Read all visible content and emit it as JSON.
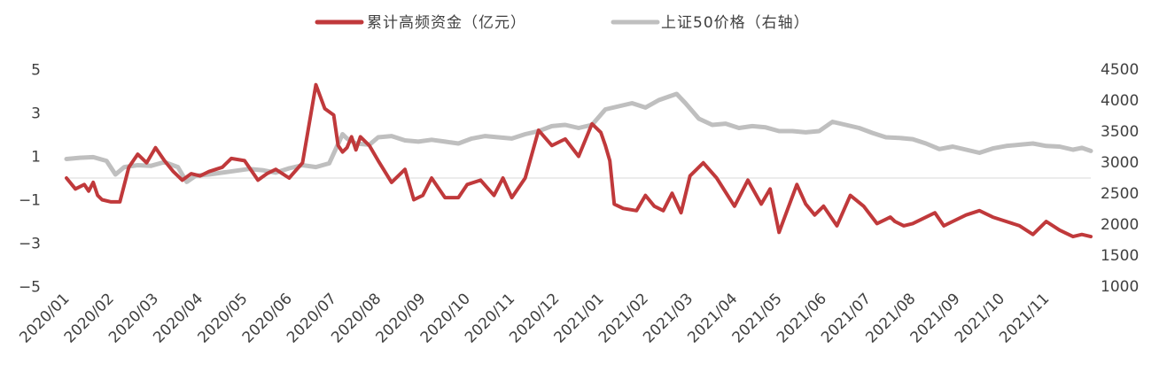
{
  "chart_data": {
    "type": "line",
    "title": "",
    "xlabel": "",
    "ylabel": "",
    "x_ticks": [
      "2020/01",
      "2020/02",
      "2020/03",
      "2020/04",
      "2020/05",
      "2020/06",
      "2020/07",
      "2020/08",
      "2020/09",
      "2020/10",
      "2020/11",
      "2020/12",
      "2021/01",
      "2021/02",
      "2021/03",
      "2021/04",
      "2021/05",
      "2021/06",
      "2021/07",
      "2021/08",
      "2021/09",
      "2021/10",
      "2021/11"
    ],
    "y_left": {
      "min": -5,
      "max": 5,
      "ticks": [
        5,
        3,
        1,
        -1,
        -3,
        -5
      ]
    },
    "y_right": {
      "min": 1000,
      "max": 4500,
      "ticks": [
        4500,
        4000,
        3500,
        3000,
        2500,
        2000,
        1500,
        1000
      ]
    },
    "legend": {
      "placement": "top-center"
    },
    "grid": false,
    "series": [
      {
        "name": "累计高频资金（亿元）",
        "axis": "left",
        "color": "#c0393b",
        "x": [
          0.0,
          0.2,
          0.4,
          0.5,
          0.6,
          0.7,
          0.8,
          1.0,
          1.2,
          1.4,
          1.6,
          1.8,
          2.0,
          2.2,
          2.4,
          2.6,
          2.8,
          3.0,
          3.2,
          3.5,
          3.7,
          4.0,
          4.3,
          4.5,
          4.7,
          5.0,
          5.3,
          5.6,
          5.8,
          6.0,
          6.1,
          6.2,
          6.3,
          6.4,
          6.5,
          6.6,
          6.8,
          7.0,
          7.3,
          7.6,
          7.8,
          8.0,
          8.2,
          8.5,
          8.8,
          9.0,
          9.3,
          9.6,
          9.8,
          10.0,
          10.3,
          10.6,
          10.9,
          11.2,
          11.5,
          11.8,
          12.0,
          12.1,
          12.2,
          12.3,
          12.5,
          12.8,
          13.0,
          13.2,
          13.4,
          13.6,
          13.8,
          14.0,
          14.3,
          14.6,
          15.0,
          15.3,
          15.6,
          15.8,
          16.0,
          16.2,
          16.4,
          16.6,
          16.8,
          17.0,
          17.3,
          17.6,
          17.9,
          18.2,
          18.4,
          18.5,
          18.6,
          18.8,
          19.0,
          19.2,
          19.5,
          19.7,
          19.9,
          20.2,
          20.5,
          20.8,
          21.1,
          21.4,
          21.7,
          22.0,
          22.3,
          22.6,
          22.8,
          23.0
        ],
        "y": [
          0.0,
          -0.5,
          -0.3,
          -0.6,
          -0.2,
          -0.8,
          -1.0,
          -1.1,
          -1.1,
          0.5,
          1.1,
          0.7,
          1.4,
          0.8,
          0.3,
          -0.1,
          0.2,
          0.1,
          0.3,
          0.5,
          0.9,
          0.8,
          -0.1,
          0.2,
          0.4,
          0.0,
          0.7,
          4.3,
          3.2,
          2.9,
          1.5,
          1.2,
          1.4,
          1.9,
          1.3,
          1.9,
          1.5,
          0.8,
          -0.2,
          0.4,
          -1.0,
          -0.8,
          0.0,
          -0.9,
          -0.9,
          -0.3,
          -0.1,
          -0.8,
          0.0,
          -0.9,
          0.0,
          2.2,
          1.5,
          1.8,
          1.0,
          2.5,
          2.1,
          1.5,
          0.8,
          -1.2,
          -1.4,
          -1.5,
          -0.8,
          -1.3,
          -1.5,
          -0.7,
          -1.6,
          0.1,
          0.7,
          0.0,
          -1.3,
          -0.1,
          -1.2,
          -0.5,
          -2.5,
          -1.4,
          -0.3,
          -1.2,
          -1.7,
          -1.3,
          -2.2,
          -0.8,
          -1.3,
          -2.1,
          -1.9,
          -1.8,
          -2.0,
          -2.2,
          -2.1,
          -1.9,
          -1.6,
          -2.2,
          -2.0,
          -1.7,
          -1.5,
          -1.8,
          -2.0,
          -2.2,
          -2.6,
          -2.0,
          -2.4,
          -2.7,
          -2.6,
          -2.7
        ]
      },
      {
        "name": "上证50价格（右轴）",
        "axis": "right",
        "color": "#bfbfbf",
        "x": [
          0.0,
          0.3,
          0.6,
          0.9,
          1.1,
          1.3,
          1.6,
          1.9,
          2.2,
          2.5,
          2.7,
          2.9,
          3.2,
          3.5,
          3.8,
          4.1,
          4.4,
          4.7,
          5.0,
          5.3,
          5.6,
          5.9,
          6.2,
          6.3,
          6.5,
          6.8,
          7.0,
          7.3,
          7.6,
          7.9,
          8.2,
          8.5,
          8.8,
          9.1,
          9.4,
          9.7,
          10.0,
          10.3,
          10.6,
          10.9,
          11.2,
          11.5,
          11.8,
          12.1,
          12.4,
          12.7,
          13.0,
          13.3,
          13.5,
          13.7,
          13.9,
          14.2,
          14.5,
          14.8,
          15.1,
          15.4,
          15.7,
          16.0,
          16.3,
          16.6,
          16.9,
          17.2,
          17.5,
          17.8,
          18.1,
          18.4,
          18.7,
          19.0,
          19.3,
          19.6,
          19.9,
          20.2,
          20.5,
          20.8,
          21.1,
          21.4,
          21.7,
          22.0,
          22.3,
          22.6,
          22.8,
          23.0
        ],
        "y": [
          3050,
          3070,
          3080,
          3020,
          2800,
          2920,
          2950,
          2940,
          3000,
          2920,
          2680,
          2780,
          2800,
          2830,
          2860,
          2890,
          2870,
          2830,
          2900,
          2950,
          2920,
          2980,
          3450,
          3380,
          3300,
          3280,
          3400,
          3420,
          3350,
          3330,
          3360,
          3330,
          3300,
          3380,
          3420,
          3400,
          3380,
          3450,
          3500,
          3580,
          3600,
          3550,
          3600,
          3850,
          3900,
          3950,
          3880,
          4000,
          4050,
          4100,
          3950,
          3700,
          3600,
          3620,
          3550,
          3580,
          3560,
          3500,
          3500,
          3480,
          3500,
          3650,
          3600,
          3550,
          3470,
          3400,
          3390,
          3370,
          3300,
          3210,
          3250,
          3200,
          3150,
          3220,
          3260,
          3280,
          3300,
          3260,
          3250,
          3200,
          3230,
          3180
        ]
      }
    ]
  }
}
